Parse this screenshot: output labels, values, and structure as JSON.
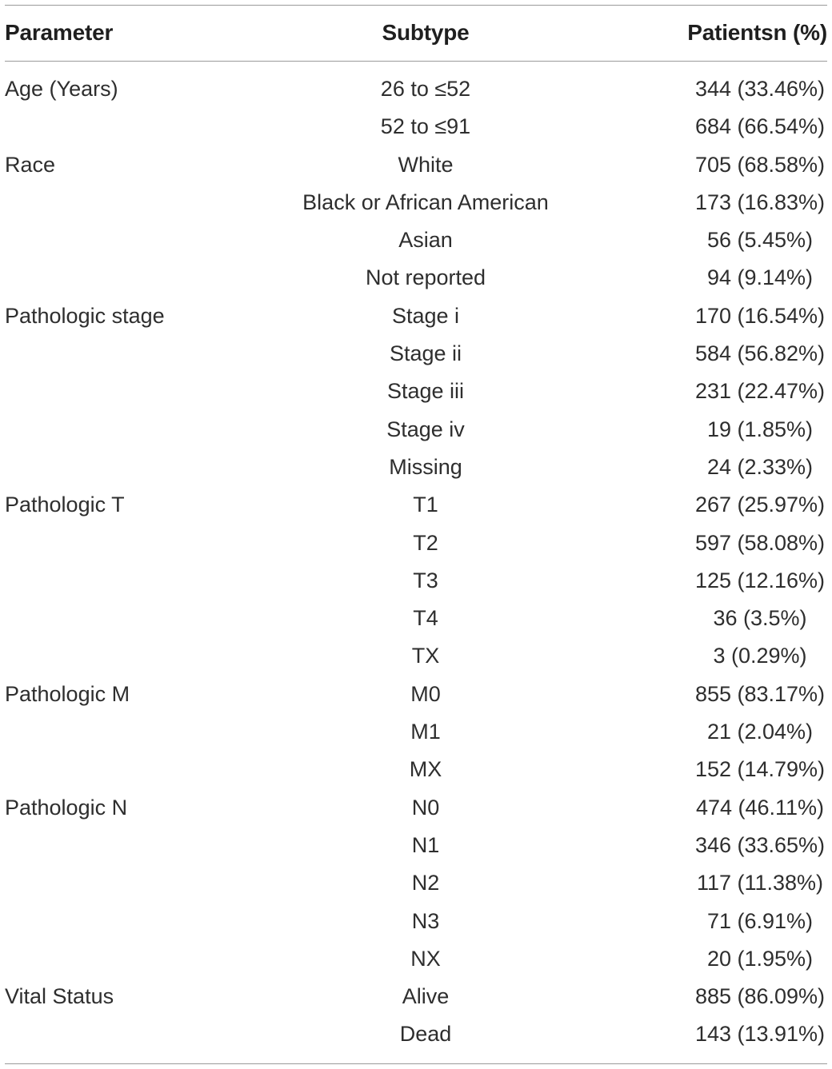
{
  "table": {
    "headers": {
      "parameter": "Parameter",
      "subtype": "Subtype",
      "patients": "Patientsn (%)"
    },
    "rows": [
      {
        "parameter": "Age (Years)",
        "subtype": "26 to ≤52",
        "patients": "344 (33.46%)"
      },
      {
        "parameter": "",
        "subtype": "52 to ≤91",
        "patients": "684 (66.54%)"
      },
      {
        "parameter": "Race",
        "subtype": "White",
        "patients": "705 (68.58%)"
      },
      {
        "parameter": "",
        "subtype": "Black or African American",
        "patients": "173 (16.83%)"
      },
      {
        "parameter": "",
        "subtype": "Asian",
        "patients": "56 (5.45%)"
      },
      {
        "parameter": "",
        "subtype": "Not reported",
        "patients": "94 (9.14%)"
      },
      {
        "parameter": "Pathologic stage",
        "subtype": "Stage i",
        "patients": "170 (16.54%)"
      },
      {
        "parameter": "",
        "subtype": "Stage ii",
        "patients": "584 (56.82%)"
      },
      {
        "parameter": "",
        "subtype": "Stage iii",
        "patients": "231 (22.47%)"
      },
      {
        "parameter": "",
        "subtype": "Stage iv",
        "patients": "19 (1.85%)"
      },
      {
        "parameter": "",
        "subtype": "Missing",
        "patients": "24 (2.33%)"
      },
      {
        "parameter": "Pathologic T",
        "subtype": "T1",
        "patients": "267 (25.97%)"
      },
      {
        "parameter": "",
        "subtype": "T2",
        "patients": "597 (58.08%)"
      },
      {
        "parameter": "",
        "subtype": "T3",
        "patients": "125 (12.16%)"
      },
      {
        "parameter": "",
        "subtype": "T4",
        "patients": "36 (3.5%)"
      },
      {
        "parameter": "",
        "subtype": "TX",
        "patients": "3 (0.29%)"
      },
      {
        "parameter": "Pathologic M",
        "subtype": "M0",
        "patients": "855 (83.17%)"
      },
      {
        "parameter": "",
        "subtype": "M1",
        "patients": "21 (2.04%)"
      },
      {
        "parameter": "",
        "subtype": "MX",
        "patients": "152 (14.79%)"
      },
      {
        "parameter": "Pathologic N",
        "subtype": "N0",
        "patients": "474 (46.11%)"
      },
      {
        "parameter": "",
        "subtype": "N1",
        "patients": "346 (33.65%)"
      },
      {
        "parameter": "",
        "subtype": "N2",
        "patients": "117 (11.38%)"
      },
      {
        "parameter": "",
        "subtype": "N3",
        "patients": "71 (6.91%)"
      },
      {
        "parameter": "",
        "subtype": "NX",
        "patients": "20 (1.95%)"
      },
      {
        "parameter": "Vital Status",
        "subtype": "Alive",
        "patients": "885 (86.09%)"
      },
      {
        "parameter": "",
        "subtype": "Dead",
        "patients": "143 (13.91%)"
      }
    ]
  }
}
